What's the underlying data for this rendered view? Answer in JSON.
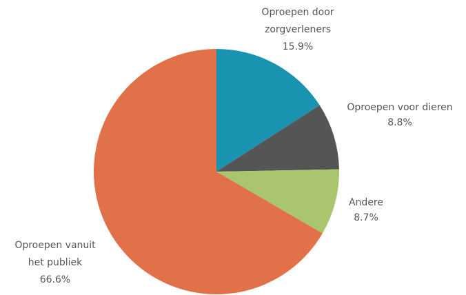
{
  "chart_data": {
    "type": "pie",
    "categories": [
      "Oproepen door zorgverleners",
      "Oproepen voor dieren",
      "Andere",
      "Oproepen vanuit het publiek"
    ],
    "values": [
      15.9,
      8.8,
      8.7,
      66.6
    ],
    "value_labels": [
      "15.9%",
      "8.8%",
      "8.7%",
      "66.6%"
    ],
    "colors": [
      "#1a93b0",
      "#555555",
      "#a9c66f",
      "#e07148"
    ]
  }
}
